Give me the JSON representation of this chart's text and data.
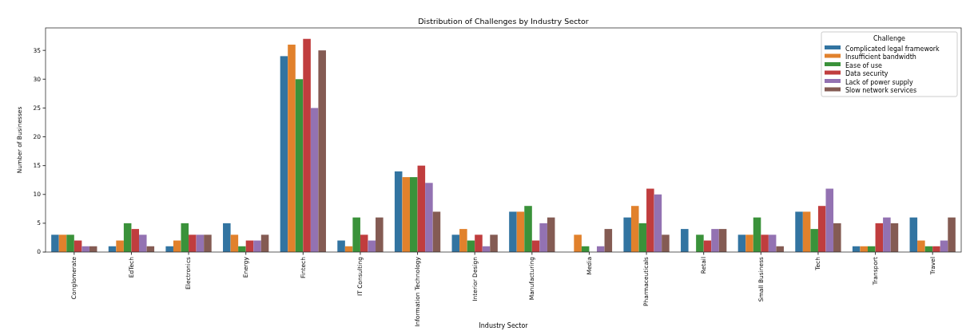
{
  "chart_data": {
    "type": "bar",
    "title": "Distribution of Challenges by Industry Sector",
    "xlabel": "Industry Sector",
    "ylabel": "Number of Businesses",
    "legend_title": "Challenge",
    "legend": "top right",
    "categories": [
      "Conglomerate",
      "EdTech",
      "Electronics",
      "Energy",
      "Fintech",
      "IT Consulting",
      "Information Technology",
      "Interior Design",
      "Manufacturing",
      "Media",
      "Pharmaceuticals",
      "Retail",
      "Small Business",
      "Tech",
      "Transport",
      "Travel"
    ],
    "series": [
      {
        "name": "Complicated legal framework",
        "color": "#3274a1",
        "values": [
          3,
          1,
          1,
          5,
          34,
          2,
          14,
          3,
          7,
          null,
          6,
          4,
          3,
          7,
          1,
          6
        ]
      },
      {
        "name": "Insufficient bandwidth",
        "color": "#e1812c",
        "values": [
          3,
          2,
          2,
          3,
          36,
          1,
          13,
          4,
          7,
          3,
          8,
          null,
          3,
          7,
          1,
          2
        ]
      },
      {
        "name": "Ease of use",
        "color": "#3a923a",
        "values": [
          3,
          5,
          5,
          1,
          30,
          6,
          13,
          2,
          8,
          1,
          5,
          3,
          6,
          4,
          1,
          1
        ]
      },
      {
        "name": "Data security",
        "color": "#c03d3e",
        "values": [
          2,
          4,
          3,
          2,
          37,
          3,
          15,
          3,
          2,
          null,
          11,
          2,
          3,
          8,
          5,
          1
        ]
      },
      {
        "name": "Lack of power supply",
        "color": "#9372b2",
        "values": [
          1,
          3,
          3,
          2,
          25,
          2,
          12,
          1,
          5,
          1,
          10,
          4,
          3,
          11,
          6,
          2
        ]
      },
      {
        "name": "Slow network services",
        "color": "#845b53",
        "values": [
          1,
          1,
          3,
          3,
          35,
          6,
          7,
          3,
          6,
          4,
          3,
          4,
          1,
          5,
          5,
          6
        ]
      }
    ],
    "ylim": [
      0,
      38.9
    ],
    "yticks": [
      0,
      5,
      10,
      15,
      20,
      25,
      30,
      35
    ],
    "grid": false
  }
}
